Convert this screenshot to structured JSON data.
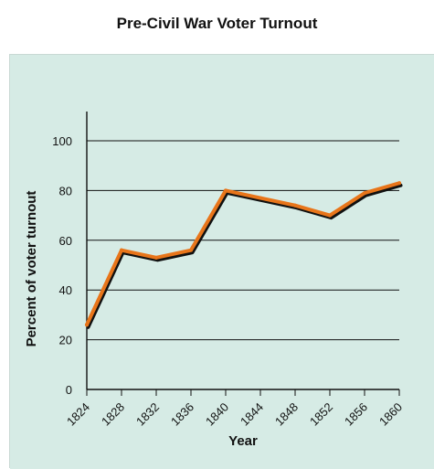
{
  "colors": {
    "panel_background": "#d6ebe5",
    "line_orange": "#e8751a",
    "line_shadow": "#111111",
    "grid": "#111111"
  },
  "chart_data": {
    "type": "line",
    "title": "Pre-Civil War Voter Turnout",
    "xlabel": "Year",
    "ylabel": "Percent of voter turnout",
    "x": [
      1824,
      1828,
      1832,
      1836,
      1840,
      1844,
      1848,
      1852,
      1856,
      1860
    ],
    "x_tick_labels": [
      "1824",
      "1828",
      "1832",
      "1836",
      "1840",
      "1844",
      "1848",
      "1852",
      "1856",
      "1860"
    ],
    "y_ticks": [
      0,
      20,
      40,
      60,
      80,
      100
    ],
    "y_tick_labels": [
      "0",
      "20",
      "40",
      "60",
      "80",
      "100"
    ],
    "ylim": [
      0,
      110
    ],
    "xlim": [
      1824,
      1860
    ],
    "grid": "horizontal",
    "series": [
      {
        "values": [
          26,
          56,
          53,
          56,
          80,
          77,
          74,
          70,
          79,
          83
        ]
      }
    ]
  }
}
